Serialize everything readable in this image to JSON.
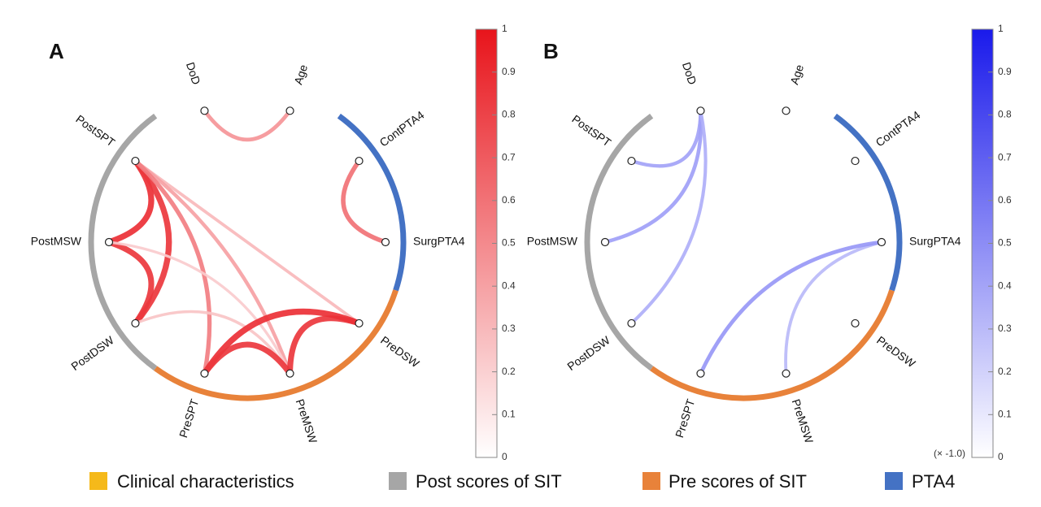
{
  "nodes": [
    "Age",
    "ContPTA4",
    "SurgPTA4",
    "PreDSW",
    "PreMSW",
    "PreSPT",
    "PostDSW",
    "PostMSW",
    "PostSPT",
    "DoD"
  ],
  "groups": [
    {
      "name": "Clinical characteristics",
      "color": "#F5B91A",
      "nodes": [
        "DoD",
        "Age"
      ]
    },
    {
      "name": "PTA4",
      "color": "#4472C4",
      "nodes": [
        "ContPTA4",
        "SurgPTA4"
      ]
    },
    {
      "name": "Pre scores of SIT",
      "color": "#E8823A",
      "nodes": [
        "PreDSW",
        "PreMSW",
        "PreSPT"
      ]
    },
    {
      "name": "Post scores of SIT",
      "color": "#A6A6A6",
      "nodes": [
        "PostDSW",
        "PostMSW",
        "PostSPT"
      ]
    }
  ],
  "legend": [
    {
      "label": "Clinical characteristics",
      "color": "#F5B91A"
    },
    {
      "label": "Post scores of SIT",
      "color": "#A6A6A6"
    },
    {
      "label": "Pre scores of SIT",
      "color": "#E8823A"
    },
    {
      "label": "PTA4",
      "color": "#4472C4"
    }
  ],
  "panels": [
    {
      "letter": "A",
      "color": "#E8141B",
      "colorbar": {
        "min": 0,
        "max": 1,
        "ticks": [
          "0",
          "0.1",
          "0.2",
          "0.3",
          "0.4",
          "0.5",
          "0.6",
          "0.7",
          "0.8",
          "0.9",
          "1"
        ],
        "note": ""
      },
      "edges": [
        {
          "a": "Age",
          "b": "DoD",
          "value": 0.45
        },
        {
          "a": "ContPTA4",
          "b": "SurgPTA4",
          "value": 0.6
        },
        {
          "a": "PostSPT",
          "b": "PostMSW",
          "value": 0.88
        },
        {
          "a": "PostSPT",
          "b": "PostDSW",
          "value": 0.85
        },
        {
          "a": "PostMSW",
          "b": "PostDSW",
          "value": 0.85
        },
        {
          "a": "PostSPT",
          "b": "PreDSW",
          "value": 0.3
        },
        {
          "a": "PostSPT",
          "b": "PreMSW",
          "value": 0.4
        },
        {
          "a": "PostSPT",
          "b": "PreSPT",
          "value": 0.55
        },
        {
          "a": "PostMSW",
          "b": "PreMSW",
          "value": 0.22
        },
        {
          "a": "PostDSW",
          "b": "PreMSW",
          "value": 0.25
        },
        {
          "a": "PreDSW",
          "b": "PreMSW",
          "value": 0.85
        },
        {
          "a": "PreDSW",
          "b": "PreSPT",
          "value": 0.88
        },
        {
          "a": "PreMSW",
          "b": "PreSPT",
          "value": 0.85
        }
      ]
    },
    {
      "letter": "B",
      "color": "#1A1AEB",
      "colorbar": {
        "min": 0,
        "max": 1,
        "ticks": [
          "0",
          "0.1",
          "0.2",
          "0.3",
          "0.4",
          "0.5",
          "0.6",
          "0.7",
          "0.8",
          "0.9",
          "1"
        ],
        "note": "(× -1.0)"
      },
      "edges": [
        {
          "a": "DoD",
          "b": "PostSPT",
          "value": 0.4
        },
        {
          "a": "DoD",
          "b": "PostMSW",
          "value": 0.42
        },
        {
          "a": "DoD",
          "b": "PostDSW",
          "value": 0.35
        },
        {
          "a": "SurgPTA4",
          "b": "PreMSW",
          "value": 0.3
        },
        {
          "a": "SurgPTA4",
          "b": "PreSPT",
          "value": 0.45
        }
      ]
    }
  ]
}
